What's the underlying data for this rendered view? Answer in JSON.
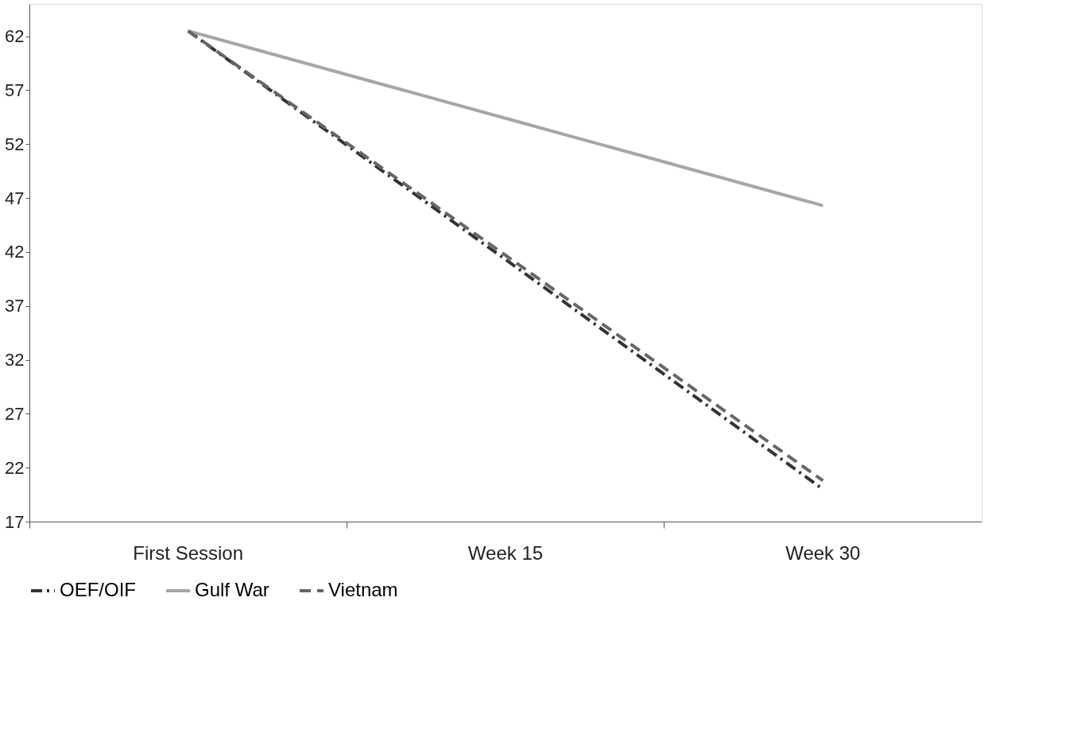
{
  "chart_data": {
    "type": "line",
    "categories": [
      "First Session",
      "Week 15",
      "Week 30"
    ],
    "series": [
      {
        "name": "OEF/OIF",
        "color": "#333333",
        "line_style": "dashdot",
        "values": [
          62.5,
          41.3,
          20.0
        ]
      },
      {
        "name": "Gulf War",
        "color": "#a6a6a6",
        "line_style": "solid",
        "values": [
          62.5,
          54.4,
          46.3
        ]
      },
      {
        "name": "Vietnam",
        "color": "#666666",
        "line_style": "dashed",
        "values": [
          62.5,
          41.7,
          20.8
        ]
      }
    ],
    "ylim": [
      17,
      65
    ],
    "yticks": [
      17,
      22,
      27,
      32,
      37,
      42,
      47,
      52,
      57,
      62
    ],
    "grid": false,
    "legend": "bottom",
    "marker": "none"
  }
}
